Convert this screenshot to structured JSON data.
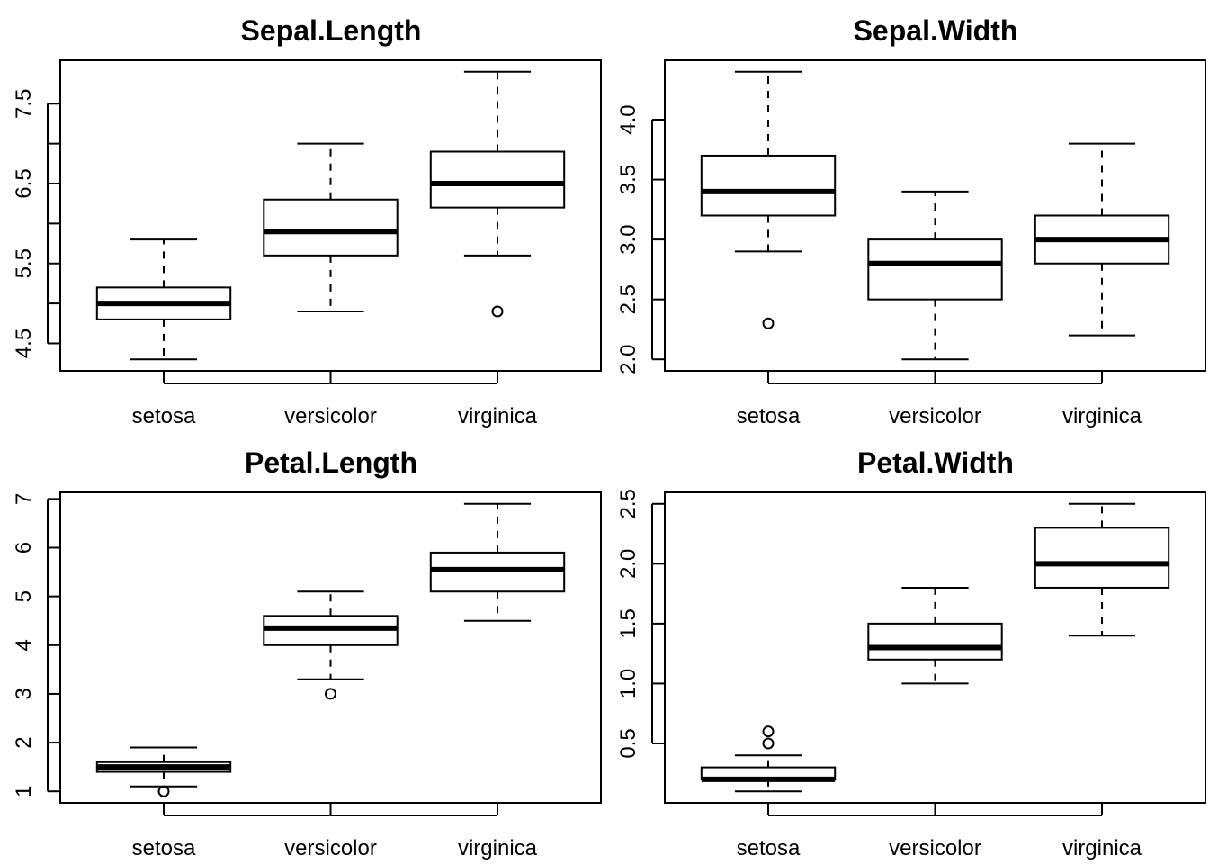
{
  "chart_data": [
    {
      "type": "boxplot",
      "title": "Sepal.Length",
      "categories": [
        "setosa",
        "versicolor",
        "virginica"
      ],
      "ylim": [
        4.3,
        7.9
      ],
      "yticks": [
        4.5,
        5.5,
        6.5,
        7.5
      ],
      "ytick_labels": [
        "4.5",
        "5.5",
        "6.5",
        "7.5"
      ],
      "yticks_minor": [
        5.0,
        6.0,
        7.0
      ],
      "boxes": [
        {
          "category": "setosa",
          "min": 4.3,
          "q1": 4.8,
          "median": 5.0,
          "q3": 5.2,
          "max": 5.8,
          "outliers": []
        },
        {
          "category": "versicolor",
          "min": 4.9,
          "q1": 5.6,
          "median": 5.9,
          "q3": 6.3,
          "max": 7.0,
          "outliers": []
        },
        {
          "category": "virginica",
          "min": 5.6,
          "q1": 6.2,
          "median": 6.5,
          "q3": 6.9,
          "max": 7.9,
          "outliers": [
            4.9
          ]
        }
      ]
    },
    {
      "type": "boxplot",
      "title": "Sepal.Width",
      "categories": [
        "setosa",
        "versicolor",
        "virginica"
      ],
      "ylim": [
        2.0,
        4.4
      ],
      "yticks": [
        2.0,
        2.5,
        3.0,
        3.5,
        4.0
      ],
      "ytick_labels": [
        "2.0",
        "2.5",
        "3.0",
        "3.5",
        "4.0"
      ],
      "yticks_minor": [],
      "boxes": [
        {
          "category": "setosa",
          "min": 2.9,
          "q1": 3.2,
          "median": 3.4,
          "q3": 3.7,
          "max": 4.4,
          "outliers": [
            2.3
          ]
        },
        {
          "category": "versicolor",
          "min": 2.0,
          "q1": 2.5,
          "median": 2.8,
          "q3": 3.0,
          "max": 3.4,
          "outliers": []
        },
        {
          "category": "virginica",
          "min": 2.2,
          "q1": 2.8,
          "median": 3.0,
          "q3": 3.2,
          "max": 3.8,
          "outliers": []
        }
      ]
    },
    {
      "type": "boxplot",
      "title": "Petal.Length",
      "categories": [
        "setosa",
        "versicolor",
        "virginica"
      ],
      "ylim": [
        1.0,
        6.9
      ],
      "yticks": [
        1,
        2,
        3,
        4,
        5,
        6,
        7
      ],
      "ytick_labels": [
        "1",
        "2",
        "3",
        "4",
        "5",
        "6",
        "7"
      ],
      "yticks_minor": [],
      "boxes": [
        {
          "category": "setosa",
          "min": 1.1,
          "q1": 1.4,
          "median": 1.5,
          "q3": 1.6,
          "max": 1.9,
          "outliers": [
            1.0
          ]
        },
        {
          "category": "versicolor",
          "min": 3.3,
          "q1": 4.0,
          "median": 4.35,
          "q3": 4.6,
          "max": 5.1,
          "outliers": [
            3.0
          ]
        },
        {
          "category": "virginica",
          "min": 4.5,
          "q1": 5.1,
          "median": 5.55,
          "q3": 5.9,
          "max": 6.9,
          "outliers": []
        }
      ]
    },
    {
      "type": "boxplot",
      "title": "Petal.Width",
      "categories": [
        "setosa",
        "versicolor",
        "virginica"
      ],
      "ylim": [
        0.1,
        2.5
      ],
      "yticks": [
        0.5,
        1.0,
        1.5,
        2.0,
        2.5
      ],
      "ytick_labels": [
        "0.5",
        "1.0",
        "1.5",
        "2.0",
        "2.5"
      ],
      "yticks_minor": [],
      "boxes": [
        {
          "category": "setosa",
          "min": 0.1,
          "q1": 0.2,
          "median": 0.2,
          "q3": 0.3,
          "max": 0.4,
          "outliers": [
            0.5,
            0.6
          ]
        },
        {
          "category": "versicolor",
          "min": 1.0,
          "q1": 1.2,
          "median": 1.3,
          "q3": 1.5,
          "max": 1.8,
          "outliers": []
        },
        {
          "category": "virginica",
          "min": 1.4,
          "q1": 1.8,
          "median": 2.0,
          "q3": 2.3,
          "max": 2.5,
          "outliers": []
        }
      ]
    }
  ]
}
